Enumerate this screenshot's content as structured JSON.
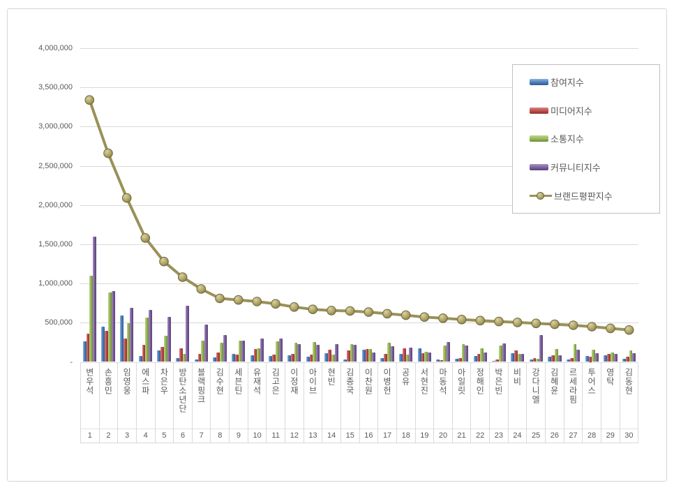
{
  "chart_data": {
    "type": "bar",
    "title": "",
    "grid": true,
    "legend_position": "right-top",
    "categories": [
      "변우석",
      "손흥민",
      "임영웅",
      "에스파",
      "차은우",
      "방탄소년단",
      "블랙핑크",
      "김수현",
      "세븐틴",
      "유재석",
      "김고은",
      "이정재",
      "아이브",
      "현빈",
      "김종국",
      "이찬원",
      "이병헌",
      "공유",
      "서현진",
      "마동석",
      "아일릿",
      "정해인",
      "박은빈",
      "비비",
      "강다니엘",
      "김혜윤",
      "르세라핌",
      "투어스",
      "영탁",
      "김동현"
    ],
    "ranks": [
      "1",
      "2",
      "3",
      "4",
      "5",
      "6",
      "7",
      "8",
      "9",
      "10",
      "11",
      "12",
      "13",
      "14",
      "15",
      "16",
      "17",
      "18",
      "19",
      "20",
      "21",
      "22",
      "23",
      "24",
      "25",
      "26",
      "27",
      "28",
      "29",
      "30"
    ],
    "y_axis": {
      "min": 0,
      "max": 4000000,
      "step": 500000,
      "tick_labels": [
        "4,000,000",
        "3,500,000",
        "3,000,000",
        "2,500,000",
        "2,000,000",
        "1,500,000",
        "1,000,000",
        "500,000",
        "-"
      ]
    },
    "series": [
      {
        "name": "참여지수",
        "type": "bar",
        "color": "#4a7ebb",
        "light": "#8fb2dc",
        "dark": "#2d5a94",
        "values": [
          260000,
          450000,
          595000,
          80000,
          150000,
          50000,
          35000,
          55000,
          100000,
          85000,
          75000,
          85000,
          65000,
          110000,
          35000,
          160000,
          48000,
          105000,
          175000,
          27000,
          36000,
          80000,
          15000,
          110000,
          27000,
          68000,
          30000,
          75000,
          83000,
          39000
        ]
      },
      {
        "name": "미디어지수",
        "type": "bar",
        "color": "#be4b48",
        "light": "#d98683",
        "dark": "#8c3431",
        "values": [
          360000,
          400000,
          300000,
          215000,
          190000,
          170000,
          100000,
          120000,
          90000,
          165000,
          95000,
          105000,
          90000,
          155000,
          150000,
          165000,
          100000,
          172000,
          110000,
          21000,
          45000,
          104000,
          33000,
          146000,
          51000,
          86000,
          45000,
          69000,
          104000,
          65000
        ]
      },
      {
        "name": "소통지수",
        "type": "bar",
        "color": "#98b954",
        "light": "#bdd48d",
        "dark": "#6e8a39",
        "values": [
          1100000,
          885000,
          495000,
          565000,
          330000,
          100000,
          270000,
          245000,
          275000,
          175000,
          260000,
          245000,
          250000,
          90000,
          223000,
          167000,
          247000,
          95000,
          130000,
          205000,
          229000,
          176000,
          211000,
          104000,
          39000,
          164000,
          229000,
          158000,
          119000,
          143000
        ]
      },
      {
        "name": "커뮤니티지수",
        "type": "bar",
        "color": "#7d60a0",
        "light": "#a992c4",
        "dark": "#574170",
        "values": [
          1600000,
          905000,
          690000,
          665000,
          570000,
          720000,
          480000,
          345000,
          270000,
          300000,
          295000,
          230000,
          215000,
          230000,
          220000,
          122000,
          199000,
          179000,
          116000,
          250000,
          205000,
          116000,
          235000,
          98000,
          342000,
          83000,
          155000,
          110000,
          101000,
          107000
        ]
      },
      {
        "name": "브랜드평판지수",
        "type": "line",
        "color": "#9a9158",
        "marker_fill": "#b1a767",
        "marker_light": "#d8d1a5",
        "marker_dark": "#837a49",
        "marker_edge": "#6e673c",
        "values": [
          3340000,
          2660000,
          2090000,
          1580000,
          1280000,
          1080000,
          930000,
          810000,
          790000,
          770000,
          740000,
          700000,
          670000,
          655000,
          650000,
          635000,
          615000,
          595000,
          572000,
          557000,
          540000,
          527000,
          515000,
          504000,
          491000,
          480000,
          467000,
          449000,
          428000,
          407000
        ]
      }
    ]
  }
}
